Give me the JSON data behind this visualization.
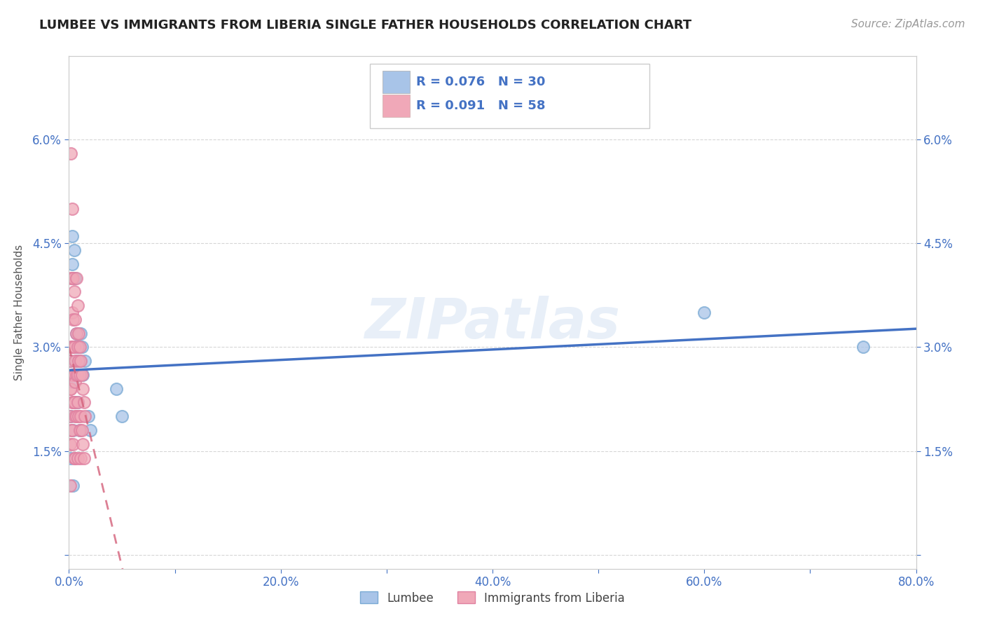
{
  "title": "LUMBEE VS IMMIGRANTS FROM LIBERIA SINGLE FATHER HOUSEHOLDS CORRELATION CHART",
  "source": "Source: ZipAtlas.com",
  "ylabel": "Single Father Households",
  "xlim": [
    0,
    0.8
  ],
  "ylim": [
    -0.002,
    0.072
  ],
  "xticks": [
    0.0,
    0.1,
    0.2,
    0.3,
    0.4,
    0.5,
    0.6,
    0.7,
    0.8
  ],
  "xticklabels": [
    "0.0%",
    "",
    "20.0%",
    "",
    "40.0%",
    "",
    "60.0%",
    "",
    "80.0%"
  ],
  "yticks": [
    0.0,
    0.015,
    0.03,
    0.045,
    0.06
  ],
  "yticklabels": [
    "",
    "1.5%",
    "3.0%",
    "4.5%",
    "6.0%"
  ],
  "lumbee_R": 0.076,
  "lumbee_N": 30,
  "liberia_R": 0.091,
  "liberia_N": 58,
  "lumbee_color": "#a8c4e8",
  "liberia_color": "#f0a8b8",
  "lumbee_edge_color": "#7aaad4",
  "liberia_edge_color": "#e080a0",
  "lumbee_line_color": "#4472c4",
  "liberia_line_color": "#d4607a",
  "watermark": "ZIPatlas",
  "title_color": "#222222",
  "tick_color": "#4472c4",
  "lumbee_x": [
    0.001,
    0.002,
    0.002,
    0.003,
    0.003,
    0.003,
    0.004,
    0.004,
    0.005,
    0.005,
    0.005,
    0.006,
    0.006,
    0.007,
    0.007,
    0.008,
    0.008,
    0.009,
    0.01,
    0.01,
    0.011,
    0.012,
    0.013,
    0.015,
    0.018,
    0.02,
    0.045,
    0.05,
    0.6,
    0.75
  ],
  "lumbee_y": [
    0.028,
    0.02,
    0.014,
    0.046,
    0.042,
    0.025,
    0.018,
    0.01,
    0.044,
    0.03,
    0.022,
    0.04,
    0.022,
    0.028,
    0.032,
    0.03,
    0.022,
    0.03,
    0.028,
    0.018,
    0.032,
    0.03,
    0.026,
    0.028,
    0.02,
    0.018,
    0.024,
    0.02,
    0.035,
    0.03
  ],
  "liberia_x": [
    0.001,
    0.001,
    0.001,
    0.001,
    0.001,
    0.002,
    0.002,
    0.002,
    0.002,
    0.002,
    0.003,
    0.003,
    0.003,
    0.003,
    0.003,
    0.003,
    0.003,
    0.004,
    0.004,
    0.004,
    0.004,
    0.004,
    0.004,
    0.005,
    0.005,
    0.005,
    0.005,
    0.005,
    0.006,
    0.006,
    0.006,
    0.006,
    0.006,
    0.007,
    0.007,
    0.007,
    0.007,
    0.008,
    0.008,
    0.008,
    0.008,
    0.008,
    0.009,
    0.009,
    0.009,
    0.01,
    0.01,
    0.01,
    0.011,
    0.011,
    0.011,
    0.012,
    0.012,
    0.013,
    0.013,
    0.014,
    0.014,
    0.015
  ],
  "liberia_y": [
    0.028,
    0.024,
    0.02,
    0.016,
    0.01,
    0.058,
    0.04,
    0.03,
    0.024,
    0.018,
    0.05,
    0.04,
    0.035,
    0.03,
    0.026,
    0.022,
    0.018,
    0.04,
    0.034,
    0.03,
    0.026,
    0.022,
    0.016,
    0.038,
    0.03,
    0.026,
    0.022,
    0.014,
    0.034,
    0.028,
    0.025,
    0.02,
    0.014,
    0.04,
    0.032,
    0.026,
    0.02,
    0.036,
    0.03,
    0.026,
    0.022,
    0.014,
    0.032,
    0.028,
    0.02,
    0.03,
    0.026,
    0.018,
    0.028,
    0.02,
    0.014,
    0.026,
    0.018,
    0.024,
    0.016,
    0.022,
    0.014,
    0.02
  ]
}
